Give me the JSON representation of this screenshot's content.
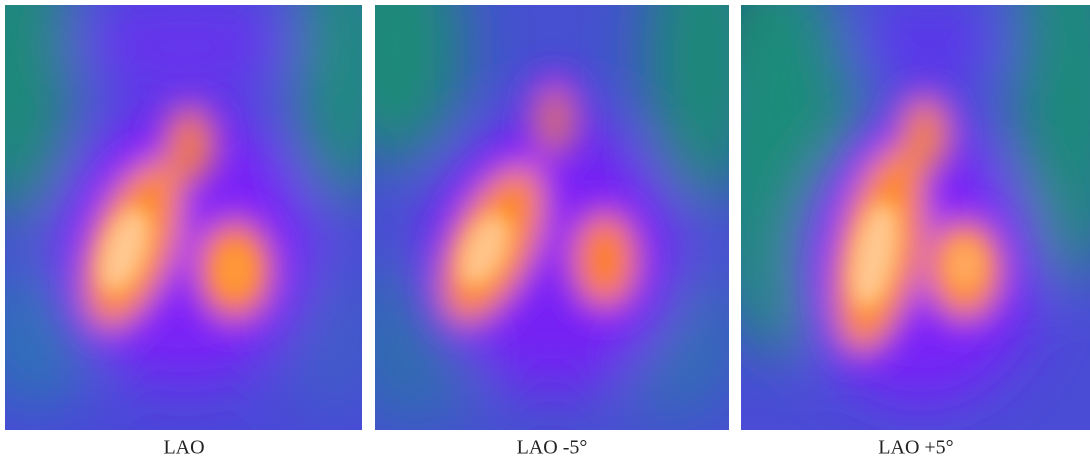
{
  "panels": [
    {
      "label": "LAO"
    },
    {
      "label": "LAO -5°"
    },
    {
      "label": "LAO +5°"
    }
  ]
}
